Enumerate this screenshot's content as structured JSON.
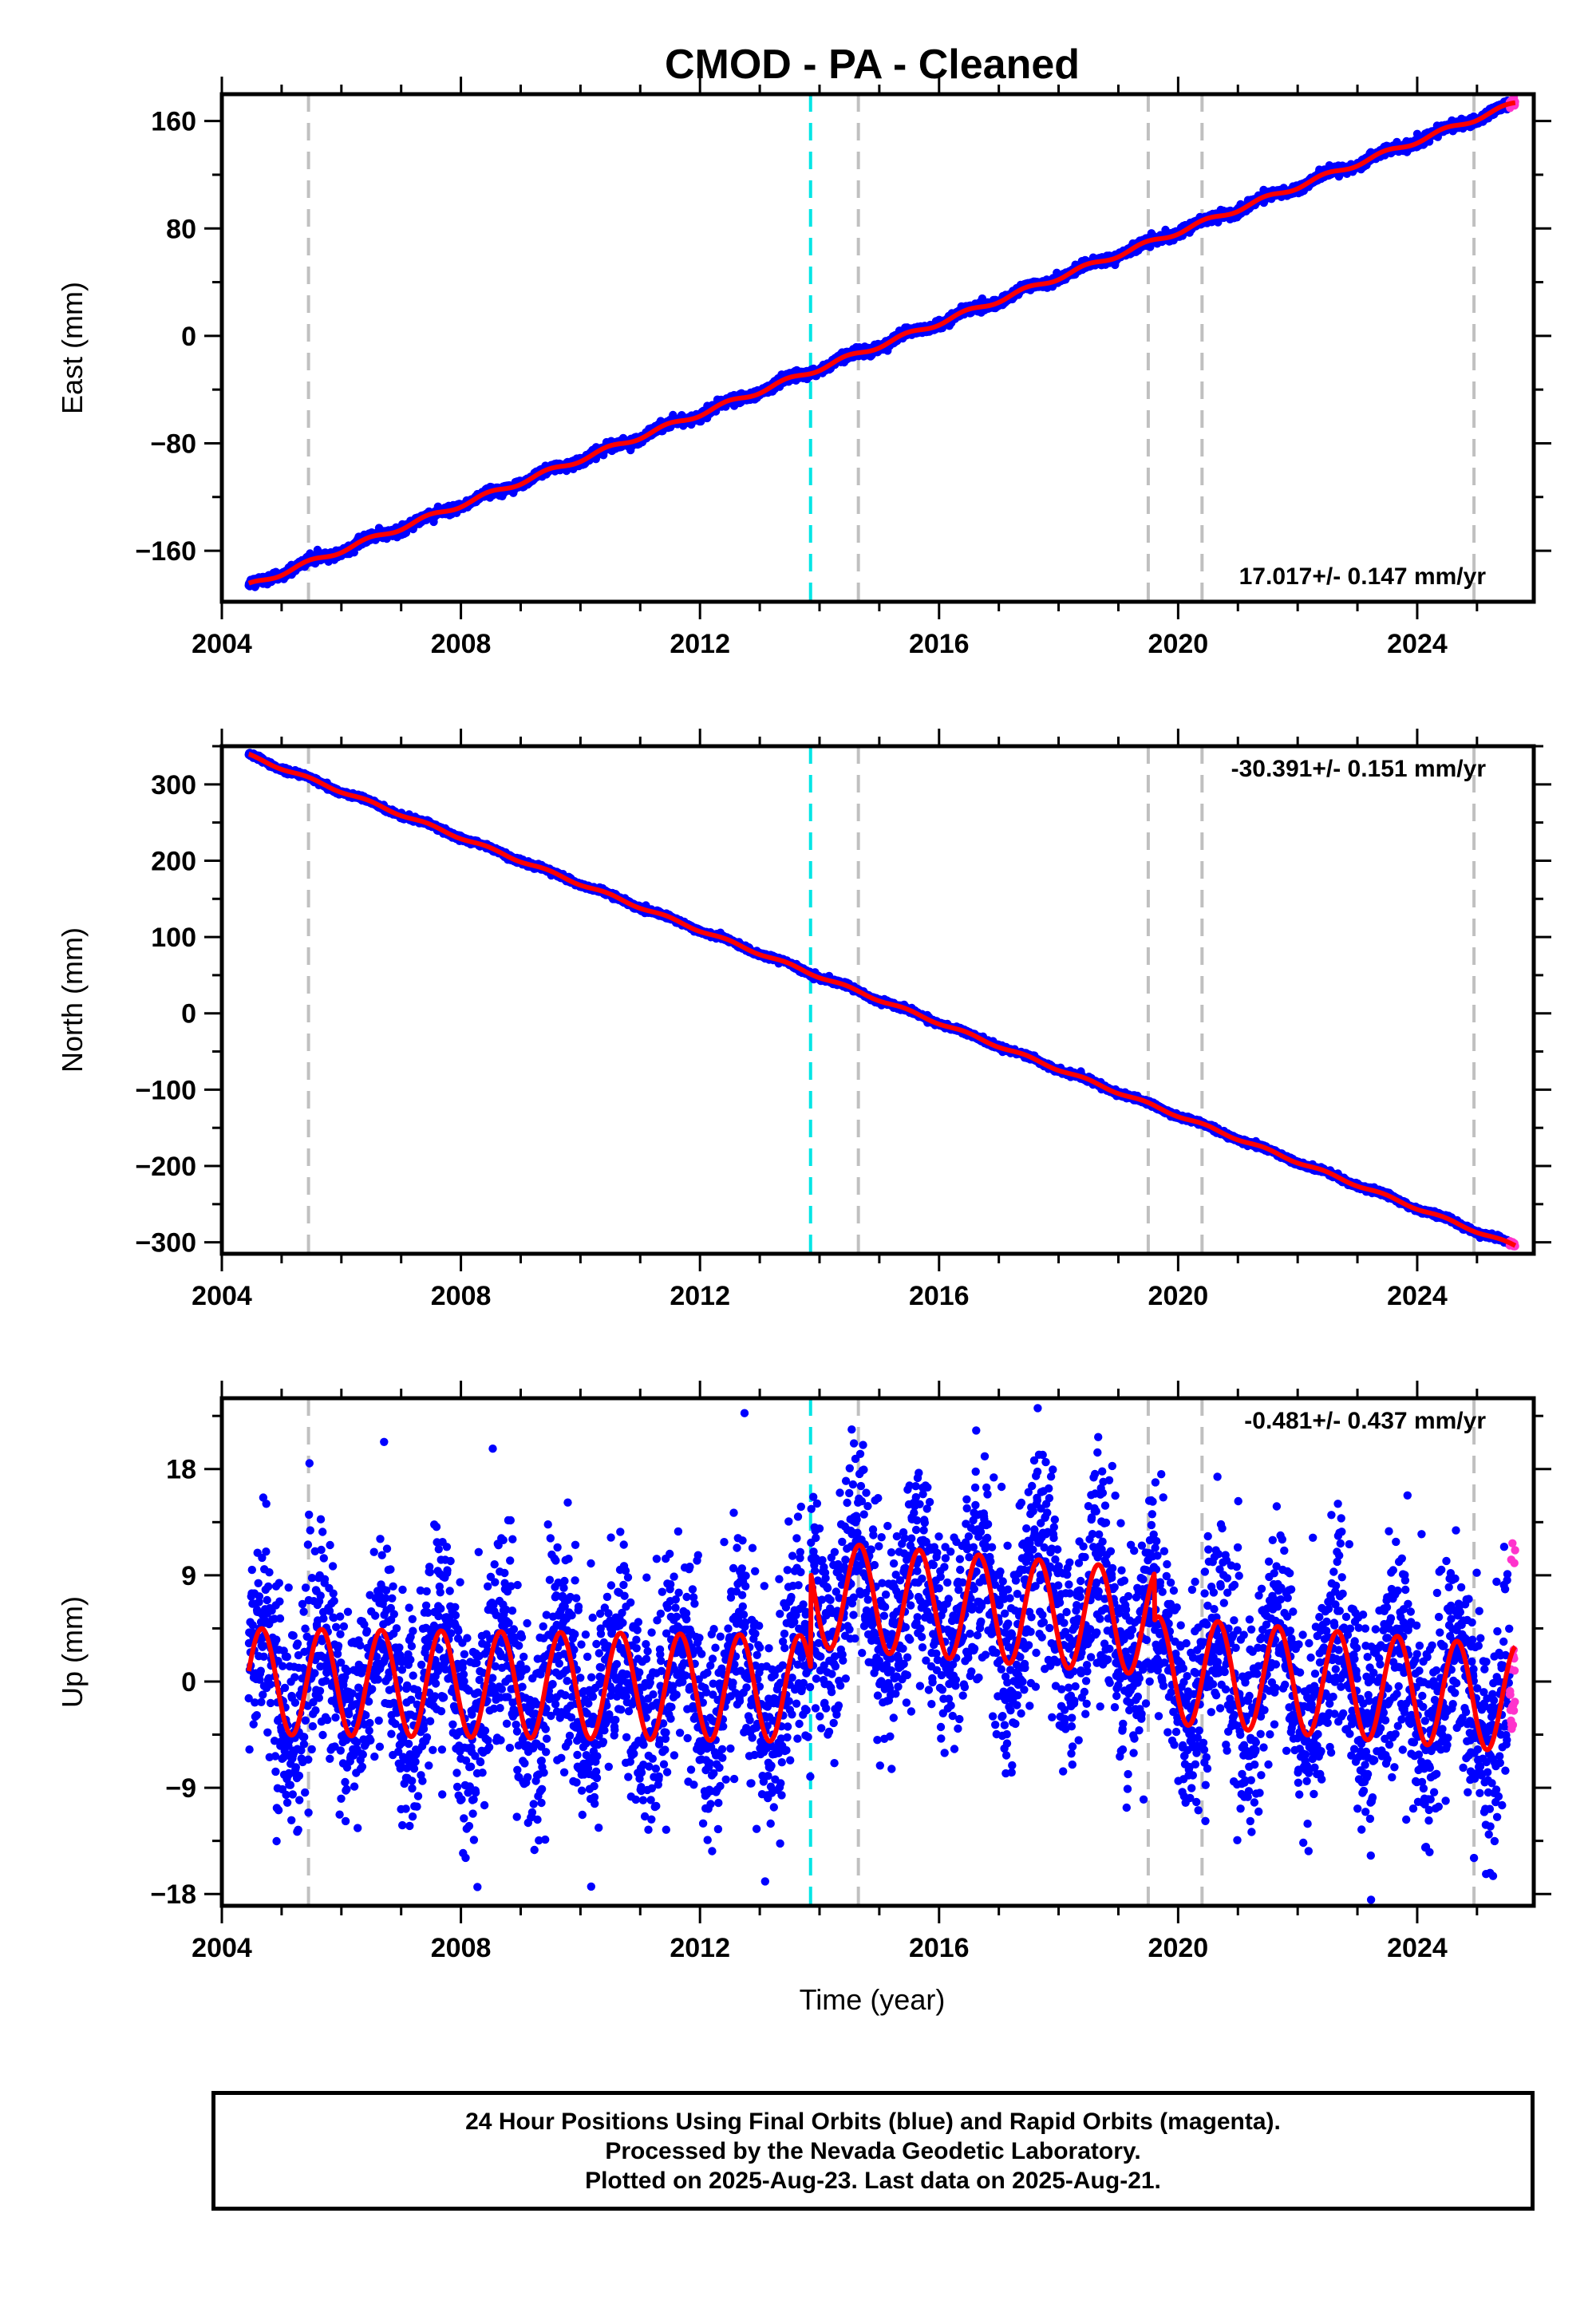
{
  "title": "CMOD  - PA - Cleaned",
  "xlabel": "Time (year)",
  "colors": {
    "final": "#0000ff",
    "rapid": "#ff33cc",
    "model": "#ff0000",
    "eq_line": "#00e5e5",
    "equip_line": "#c0c0c0"
  },
  "chart_data": [
    {
      "type": "scatter",
      "component": "east",
      "ylabel": "East (mm)",
      "xlim": [
        2004.0,
        2025.95
      ],
      "ylim": [
        -198,
        180
      ],
      "xticks": [
        "2004",
        "2008",
        "2012",
        "2016",
        "2020",
        "2024"
      ],
      "yticks": [
        "160",
        "80",
        "0",
        "−80",
        "−160"
      ],
      "rate_label": "17.017+/- 0.147 mm/yr",
      "velocity_mm_yr": 17.017,
      "series": [
        {
          "name": "Final Orbits (blue)",
          "x_range": [
            2004.45,
            2025.55
          ],
          "y_start": -186,
          "y_end": 172
        },
        {
          "name": "Rapid Orbits (magenta)",
          "x_range": [
            2025.55,
            2025.64
          ],
          "y_start": 172,
          "y_end": 174
        }
      ],
      "model": {
        "y_start": -186,
        "y_end": 173
      }
    },
    {
      "type": "scatter",
      "component": "north",
      "ylabel": "North (mm)",
      "xlim": [
        2004.0,
        2025.95
      ],
      "ylim": [
        -315,
        350
      ],
      "xticks": [
        "2004",
        "2008",
        "2012",
        "2016",
        "2020",
        "2024"
      ],
      "yticks": [
        "300",
        "200",
        "100",
        "0",
        "−100",
        "−200",
        "−300"
      ],
      "rate_label": "-30.391+/- 0.151 mm/yr",
      "velocity_mm_yr": -30.391,
      "series": [
        {
          "name": "Final Orbits (blue)",
          "x_range": [
            2004.45,
            2025.55
          ],
          "y_start": 338,
          "y_end": -302
        },
        {
          "name": "Rapid Orbits (magenta)",
          "x_range": [
            2025.55,
            2025.64
          ],
          "y_start": -302,
          "y_end": -305
        }
      ],
      "model": {
        "y_start": 338,
        "y_end": -305
      }
    },
    {
      "type": "scatter",
      "component": "up",
      "ylabel": "Up (mm)",
      "xlim": [
        2004.0,
        2025.95
      ],
      "ylim": [
        -19,
        24
      ],
      "xticks": [
        "2004",
        "2008",
        "2012",
        "2016",
        "2020",
        "2024"
      ],
      "yticks": [
        "18",
        "9",
        "0",
        "−9",
        "−18"
      ],
      "rate_label": "-0.481+/- 0.437 mm/yr",
      "velocity_mm_yr": -0.481,
      "series": [
        {
          "name": "Final Orbits (blue)",
          "x_range": [
            2004.45,
            2025.55
          ],
          "noise_mm": 4.5
        },
        {
          "name": "Rapid Orbits (magenta)",
          "x_range": [
            2025.55,
            2025.64
          ],
          "y_range": [
            -5,
            13
          ]
        }
      ],
      "model": {
        "annual_amplitude_mm": 4.5,
        "offset_after_2013_85_mm": 8,
        "offset_after_2019_6_mm": -4
      }
    }
  ],
  "event_lines": {
    "equipment_change": [
      2005.45,
      2014.65,
      2019.5,
      2020.4,
      2024.95
    ],
    "earthquake": [
      2013.85
    ]
  },
  "footer": {
    "line1": "24 Hour Positions Using Final Orbits (blue) and Rapid Orbits (magenta).",
    "line2": "Processed by the Nevada Geodetic Laboratory.",
    "line3": "Plotted on 2025-Aug-23. Last data on 2025-Aug-21."
  }
}
